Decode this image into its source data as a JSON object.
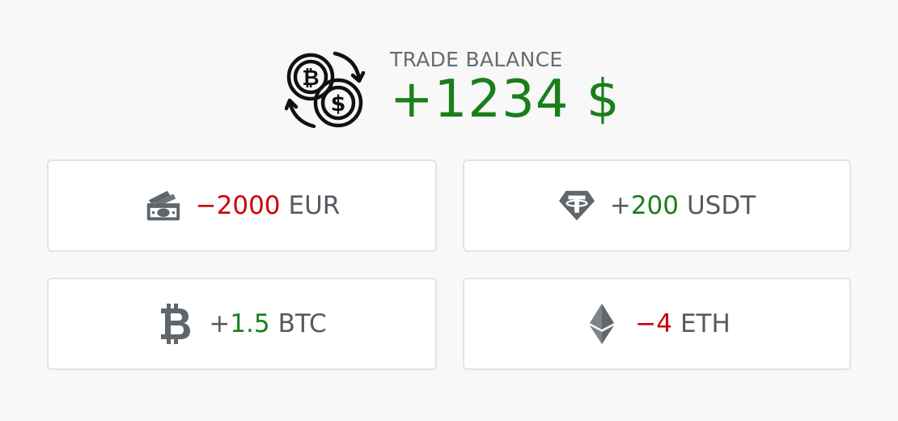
{
  "balance": {
    "label": "TRADE BALANCE",
    "value": "+1234 $",
    "color": "#1a7f1a",
    "icon": "crypto-exchange-icon"
  },
  "assets": [
    {
      "sign": "−",
      "amount": "2000",
      "unit": "EUR",
      "direction": "negative",
      "icon": "banknote-icon"
    },
    {
      "sign": "+",
      "amount": "200",
      "unit": "USDT",
      "direction": "positive",
      "icon": "tether-icon"
    },
    {
      "sign": "+",
      "amount": "1.5",
      "unit": "BTC",
      "direction": "positive",
      "icon": "bitcoin-icon"
    },
    {
      "sign": "−",
      "amount": "4",
      "unit": "ETH",
      "direction": "negative",
      "icon": "ethereum-icon"
    }
  ],
  "colors": {
    "positive": "#1a7f1a",
    "negative": "#cc0000",
    "text": "#555b61",
    "icon": "#5f666c"
  }
}
